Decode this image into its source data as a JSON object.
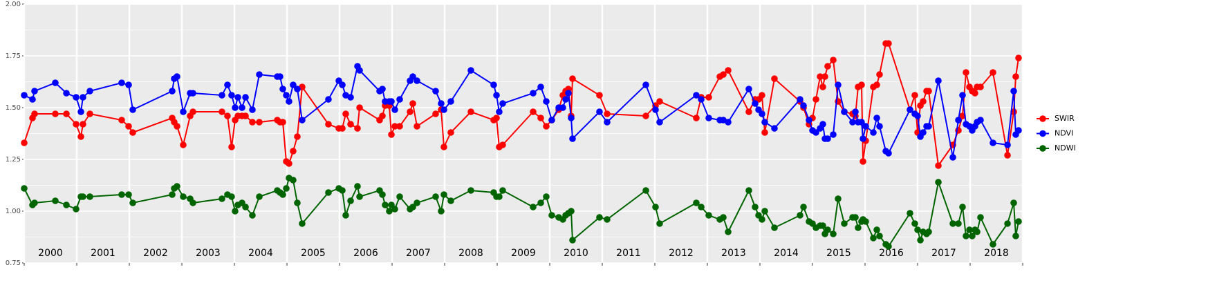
{
  "chart_data": {
    "type": "line",
    "x": [
      2000,
      2000.158,
      2000.197,
      2000.592,
      2000.803,
      2000.987,
      2001.079,
      2001.118,
      2001.25,
      2001.855,
      2001.987,
      2002.066,
      2002.816,
      2002.855,
      2002.908,
      2003.026,
      2003.158,
      2003.211,
      2003.763,
      2003.868,
      2003.947,
      2004.013,
      2004.066,
      2004.145,
      2004.211,
      2004.342,
      2004.474,
      2004.816,
      2004.868,
      2004.921,
      2004.987,
      2005.039,
      2005.118,
      2005.197,
      2005.289,
      2005.789,
      2005.987,
      2006.053,
      2006.118,
      2006.211,
      2006.342,
      2006.382,
      2006.763,
      2006.816,
      2006.868,
      2006.947,
      2006.987,
      2007.053,
      2007.145,
      2007.342,
      2007.395,
      2007.474,
      2007.829,
      2007.934,
      2007.987,
      2008.118,
      2008.5,
      2008.934,
      2008.987,
      2009.039,
      2009.105,
      2009.684,
      2009.829,
      2009.934,
      2010.039,
      2010.171,
      2010.25,
      2010.303,
      2010.355,
      2010.408,
      2010.434,
      2010.947,
      2011.092,
      2011.829,
      2012.013,
      2012.092,
      2012.789,
      2012.882,
      2013.026,
      2013.237,
      2013.303,
      2013.395,
      2013.789,
      2013.908,
      2013.974,
      2014.039,
      2014.092,
      2014.276,
      2014.763,
      2014.829,
      2014.934,
      2015,
      2015.066,
      2015.145,
      2015.197,
      2015.237,
      2015.289,
      2015.395,
      2015.487,
      2015.605,
      2015.763,
      2015.816,
      2015.868,
      2015.934,
      2015.961,
      2016.013,
      2016.158,
      2016.224,
      2016.276,
      2016.395,
      2016.447,
      2016.855,
      2016.947,
      2017,
      2017.053,
      2017.105,
      2017.171,
      2017.211,
      2017.395,
      2017.671,
      2017.776,
      2017.855,
      2017.921,
      2017.987,
      2018.039,
      2018.092,
      2018.132,
      2018.197,
      2018.434,
      2018.711,
      2018.829,
      2018.868,
      2018.921
    ],
    "series": [
      {
        "name": "SWIR",
        "color": "#ff0000",
        "values": [
          1.33,
          1.45,
          1.47,
          1.47,
          1.47,
          1.42,
          1.36,
          1.42,
          1.47,
          1.44,
          1.41,
          1.38,
          1.45,
          1.43,
          1.41,
          1.32,
          1.46,
          1.48,
          1.48,
          1.46,
          1.31,
          1.44,
          1.46,
          1.46,
          1.46,
          1.43,
          1.43,
          1.44,
          1.43,
          1.43,
          1.24,
          1.23,
          1.29,
          1.36,
          1.6,
          1.42,
          1.4,
          1.4,
          1.47,
          1.42,
          1.4,
          1.5,
          1.44,
          1.46,
          1.51,
          1.51,
          1.37,
          1.41,
          1.41,
          1.48,
          1.52,
          1.41,
          1.47,
          1.49,
          1.31,
          1.38,
          1.48,
          1.44,
          1.45,
          1.31,
          1.32,
          1.48,
          1.45,
          1.41,
          1.44,
          1.49,
          1.56,
          1.58,
          1.59,
          1.46,
          1.64,
          1.56,
          1.47,
          1.46,
          1.51,
          1.53,
          1.45,
          1.55,
          1.55,
          1.65,
          1.66,
          1.68,
          1.48,
          1.54,
          1.54,
          1.56,
          1.38,
          1.64,
          1.53,
          1.5,
          1.42,
          1.45,
          1.54,
          1.65,
          1.6,
          1.65,
          1.7,
          1.73,
          1.53,
          1.48,
          1.47,
          1.46,
          1.6,
          1.61,
          1.24,
          1.34,
          1.6,
          1.61,
          1.66,
          1.81,
          1.81,
          1.49,
          1.56,
          1.38,
          1.51,
          1.53,
          1.58,
          1.58,
          1.22,
          1.32,
          1.39,
          1.46,
          1.67,
          1.6,
          1.58,
          1.57,
          1.6,
          1.6,
          1.67,
          1.27,
          1.48,
          1.65,
          1.74
        ]
      },
      {
        "name": "NDVI",
        "color": "#0000ff",
        "values": [
          1.56,
          1.54,
          1.58,
          1.62,
          1.57,
          1.55,
          1.48,
          1.55,
          1.58,
          1.62,
          1.61,
          1.49,
          1.58,
          1.64,
          1.65,
          1.48,
          1.57,
          1.57,
          1.56,
          1.61,
          1.56,
          1.5,
          1.55,
          1.5,
          1.55,
          1.49,
          1.66,
          1.65,
          1.65,
          1.59,
          1.56,
          1.53,
          1.61,
          1.59,
          1.44,
          1.54,
          1.63,
          1.61,
          1.56,
          1.55,
          1.7,
          1.68,
          1.58,
          1.59,
          1.53,
          1.53,
          1.53,
          1.49,
          1.54,
          1.63,
          1.65,
          1.63,
          1.58,
          1.52,
          1.49,
          1.53,
          1.68,
          1.61,
          1.56,
          1.48,
          1.52,
          1.57,
          1.6,
          1.53,
          1.44,
          1.5,
          1.5,
          1.54,
          1.57,
          1.45,
          1.35,
          1.48,
          1.43,
          1.61,
          1.49,
          1.43,
          1.56,
          1.54,
          1.45,
          1.44,
          1.44,
          1.43,
          1.59,
          1.52,
          1.49,
          1.47,
          1.43,
          1.4,
          1.54,
          1.51,
          1.44,
          1.39,
          1.38,
          1.4,
          1.42,
          1.35,
          1.35,
          1.37,
          1.61,
          1.48,
          1.43,
          1.48,
          1.43,
          1.43,
          1.35,
          1.41,
          1.38,
          1.45,
          1.41,
          1.29,
          1.28,
          1.49,
          1.47,
          1.46,
          1.36,
          1.38,
          1.41,
          1.41,
          1.63,
          1.26,
          1.44,
          1.56,
          1.42,
          1.41,
          1.39,
          1.41,
          1.43,
          1.44,
          1.33,
          1.32,
          1.58,
          1.37,
          1.39
        ]
      },
      {
        "name": "NDWI",
        "color": "#006400",
        "values": [
          1.11,
          1.03,
          1.04,
          1.05,
          1.03,
          1.01,
          1.07,
          1.07,
          1.07,
          1.08,
          1.08,
          1.04,
          1.08,
          1.11,
          1.12,
          1.07,
          1.06,
          1.04,
          1.06,
          1.08,
          1.07,
          1.0,
          1.03,
          1.04,
          1.02,
          0.98,
          1.07,
          1.1,
          1.09,
          1.08,
          1.11,
          1.16,
          1.15,
          1.04,
          0.94,
          1.09,
          1.11,
          1.1,
          0.98,
          1.05,
          1.12,
          1.07,
          1.1,
          1.08,
          1.03,
          1.0,
          1.03,
          1.01,
          1.07,
          1.01,
          1.02,
          1.04,
          1.07,
          1.0,
          1.08,
          1.05,
          1.1,
          1.09,
          1.07,
          1.07,
          1.1,
          1.02,
          1.04,
          1.07,
          0.98,
          0.97,
          0.96,
          0.98,
          0.99,
          1.0,
          0.86,
          0.97,
          0.96,
          1.1,
          1.02,
          0.94,
          1.04,
          1.02,
          0.98,
          0.96,
          0.97,
          0.9,
          1.1,
          1.02,
          0.98,
          0.96,
          1.0,
          0.92,
          0.98,
          1.02,
          0.95,
          0.94,
          0.92,
          0.93,
          0.93,
          0.89,
          0.91,
          0.89,
          1.06,
          0.94,
          0.97,
          0.97,
          0.92,
          0.95,
          0.96,
          0.95,
          0.87,
          0.91,
          0.88,
          0.84,
          0.83,
          0.99,
          0.94,
          0.91,
          0.86,
          0.9,
          0.89,
          0.9,
          1.14,
          0.94,
          0.94,
          1.02,
          0.88,
          0.91,
          0.88,
          0.91,
          0.9,
          0.97,
          0.84,
          0.94,
          1.04,
          0.88,
          0.95
        ]
      }
    ],
    "xlim": [
      2000,
      2019
    ],
    "xticks": [
      2000,
      2001,
      2002,
      2003,
      2004,
      2005,
      2006,
      2007,
      2008,
      2009,
      2010,
      2011,
      2012,
      2013,
      2014,
      2015,
      2016,
      2017,
      2018,
      2019
    ],
    "ylim": [
      0.75,
      2
    ],
    "yticks": [
      0.75,
      {
        "value": 1,
        "label": "1.00"
      },
      1.25,
      {
        "value": 1.5,
        "label": "1.50"
      },
      1.75,
      {
        "value": 2,
        "label": "2.00"
      }
    ],
    "y_minor_ticks": [
      0.875,
      1.125,
      1.375,
      1.625,
      1.875
    ],
    "year_labels": [
      {
        "value": 2000.5,
        "label": "2000"
      },
      {
        "value": 2001.5,
        "label": "2001"
      },
      {
        "value": 2002.5,
        "label": "2002"
      },
      {
        "value": 2003.5,
        "label": "2003"
      },
      {
        "value": 2004.5,
        "label": "2004"
      },
      {
        "value": 2005.5,
        "label": "2005"
      },
      {
        "value": 2006.5,
        "label": "2006"
      },
      {
        "value": 2007.5,
        "label": "2007"
      },
      {
        "value": 2008.5,
        "label": "2008"
      },
      {
        "value": 2009.5,
        "label": "2009"
      },
      {
        "value": 2010.5,
        "label": "2010"
      },
      {
        "value": 2011.5,
        "label": "2011"
      },
      {
        "value": 2012.5,
        "label": "2012"
      },
      {
        "value": 2013.5,
        "label": "2013"
      },
      {
        "value": 2014.5,
        "label": "2014"
      },
      {
        "value": 2015.5,
        "label": "2015"
      },
      {
        "value": 2016.5,
        "label": "2016"
      },
      {
        "value": 2017.5,
        "label": "2017"
      },
      {
        "value": 2018.5,
        "label": "2018"
      }
    ],
    "grid": true,
    "legend": "right"
  }
}
